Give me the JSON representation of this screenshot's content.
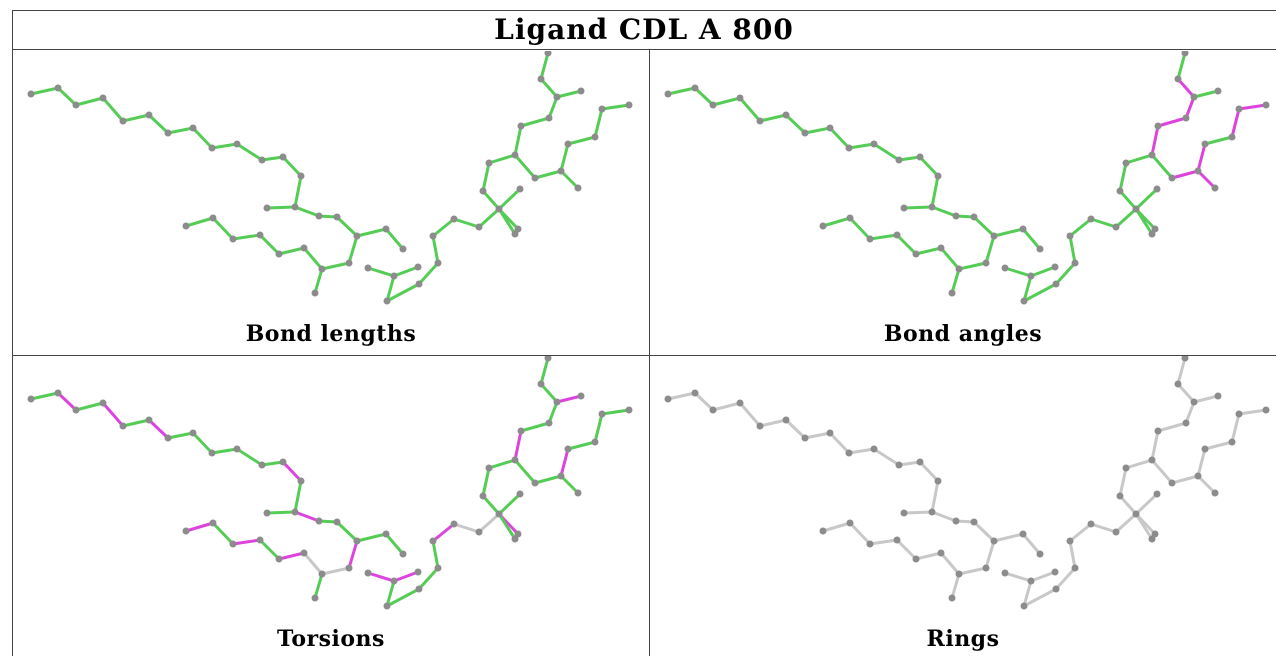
{
  "title": "Ligand CDL A 800",
  "panels": [
    {
      "id": "bond-lengths",
      "label": "Bond lengths"
    },
    {
      "id": "bond-angles",
      "label": "Bond angles"
    },
    {
      "id": "torsions",
      "label": "Torsions"
    },
    {
      "id": "rings",
      "label": "Rings"
    }
  ],
  "colors": {
    "ok": "#55cc55",
    "outlier": "#dd44dd",
    "neutral": "#c8c8c8",
    "atom": "#8c8c8c"
  }
}
